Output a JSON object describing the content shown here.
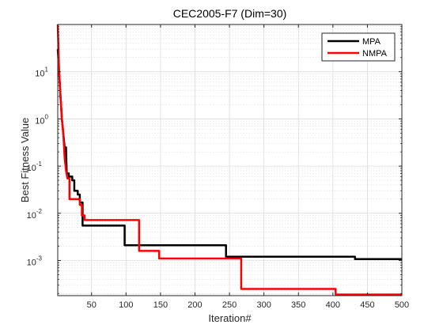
{
  "chart_data": {
    "type": "line",
    "title": "CEC2005-F7 (Dim=30)",
    "xlabel": "Iteration#",
    "ylabel": "Best Fitness Value",
    "xlim": [
      1,
      500
    ],
    "ylim": [
      0.00018,
      100
    ],
    "yscale": "log",
    "grid": true,
    "minor_grid": true,
    "legend_position": "top-right",
    "xticks": [
      50,
      100,
      150,
      200,
      250,
      300,
      350,
      400,
      450,
      500
    ],
    "xtick_labels": [
      "50",
      "100",
      "150",
      "200",
      "250",
      "300",
      "350",
      "400",
      "450",
      "500"
    ],
    "yticks": [
      0.001,
      0.01,
      0.1,
      1,
      10
    ],
    "ytick_labels": [
      {
        "base": "10",
        "exp": "-3"
      },
      {
        "base": "10",
        "exp": "-2"
      },
      {
        "base": "10",
        "exp": "-1"
      },
      {
        "base": "10",
        "exp": "0"
      },
      {
        "base": "10",
        "exp": "1"
      }
    ],
    "series": [
      {
        "name": "MPA",
        "color": "#000000",
        "points": [
          [
            1,
            30
          ],
          [
            3,
            10
          ],
          [
            5,
            3
          ],
          [
            7,
            1
          ],
          [
            9,
            0.5
          ],
          [
            11,
            0.25
          ],
          [
            13,
            0.25
          ],
          [
            14,
            0.07
          ],
          [
            17,
            0.07
          ],
          [
            17,
            0.06
          ],
          [
            22,
            0.06
          ],
          [
            22,
            0.05
          ],
          [
            25,
            0.05
          ],
          [
            25,
            0.03
          ],
          [
            30,
            0.03
          ],
          [
            30,
            0.025
          ],
          [
            33,
            0.025
          ],
          [
            33,
            0.017
          ],
          [
            37,
            0.017
          ],
          [
            37,
            0.0055
          ],
          [
            98,
            0.0055
          ],
          [
            98,
            0.0021
          ],
          [
            245,
            0.0021
          ],
          [
            245,
            0.0012
          ],
          [
            432,
            0.0012
          ],
          [
            432,
            0.00107
          ],
          [
            500,
            0.00107
          ]
        ]
      },
      {
        "name": "NMPA",
        "color": "#ff0000",
        "points": [
          [
            1,
            100
          ],
          [
            3,
            10
          ],
          [
            5,
            3
          ],
          [
            7,
            1
          ],
          [
            9,
            0.5
          ],
          [
            11,
            0.15
          ],
          [
            13,
            0.08
          ],
          [
            15,
            0.055
          ],
          [
            18,
            0.055
          ],
          [
            18,
            0.02
          ],
          [
            33,
            0.02
          ],
          [
            33,
            0.015
          ],
          [
            36,
            0.015
          ],
          [
            36,
            0.009
          ],
          [
            40,
            0.009
          ],
          [
            40,
            0.0072
          ],
          [
            119,
            0.0072
          ],
          [
            119,
            0.0016
          ],
          [
            148,
            0.0016
          ],
          [
            148,
            0.0011
          ],
          [
            267,
            0.0011
          ],
          [
            267,
            0.00025
          ],
          [
            404,
            0.00025
          ],
          [
            404,
            0.00019
          ],
          [
            500,
            0.00019
          ]
        ]
      }
    ]
  }
}
